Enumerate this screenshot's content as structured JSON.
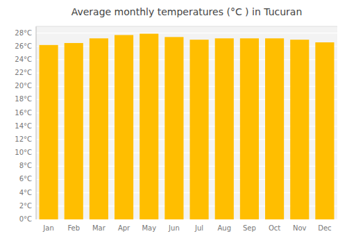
{
  "chart_data": {
    "type": "bar",
    "title": "Average monthly temperatures (°C ) in Tucuran",
    "categories": [
      "Jan",
      "Feb",
      "Mar",
      "Apr",
      "May",
      "Jun",
      "Jul",
      "Aug",
      "Sep",
      "Oct",
      "Nov",
      "Dec"
    ],
    "values": [
      26.2,
      26.5,
      27.2,
      27.7,
      27.9,
      27.4,
      27.0,
      27.2,
      27.2,
      27.2,
      27.0,
      26.6
    ],
    "color": "#FFBE00",
    "ylim": [
      0,
      29
    ],
    "yticks": [
      {
        "value": 0,
        "label": "0°C"
      },
      {
        "value": 2,
        "label": "2°C"
      },
      {
        "value": 4,
        "label": "4°C"
      },
      {
        "value": 6,
        "label": "6°C"
      },
      {
        "value": 8,
        "label": "8°C"
      },
      {
        "value": 10,
        "label": "10°C"
      },
      {
        "value": 12,
        "label": "12°C"
      },
      {
        "value": 14,
        "label": "14°C"
      },
      {
        "value": 16,
        "label": "16°C"
      },
      {
        "value": 18,
        "label": "18°C"
      },
      {
        "value": 20,
        "label": "20°C"
      },
      {
        "value": 22,
        "label": "22°C"
      },
      {
        "value": 24,
        "label": "24°C"
      },
      {
        "value": 26,
        "label": "26°C"
      },
      {
        "value": 28,
        "label": "28°C"
      }
    ],
    "grid": true
  }
}
